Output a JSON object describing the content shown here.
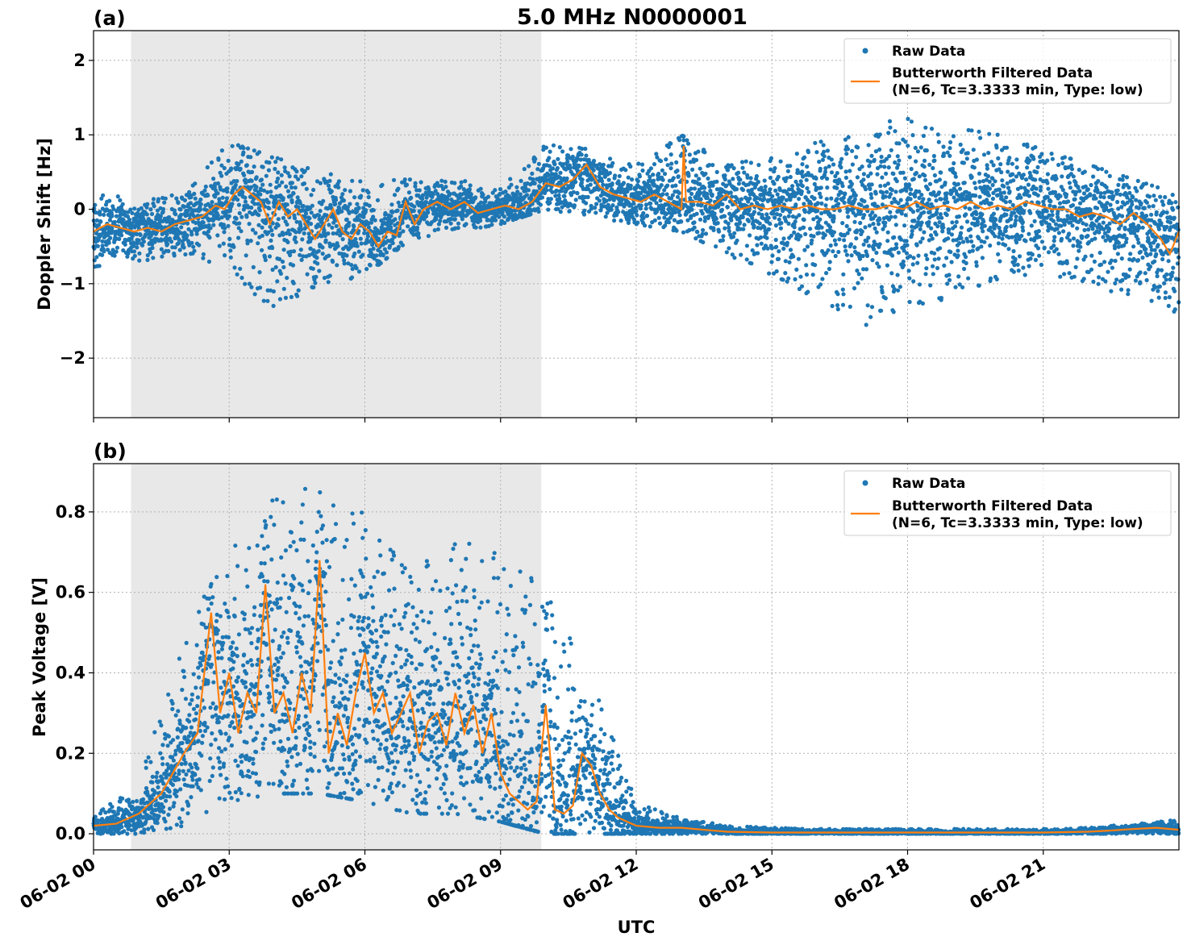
{
  "figure": {
    "title": "5.0 MHz N0000001",
    "xlabel": "UTC",
    "panel_labels": [
      "(a)",
      "(b)"
    ],
    "colors": {
      "raw": "#1f77b4",
      "filtered": "#ff7f0e",
      "shade": "#e8e8e8",
      "grid": "#b0b0b0"
    },
    "legend": {
      "raw_label": "Raw Data",
      "filtered_label_1": "Butterworth Filtered Data",
      "filtered_label_2": "(N=6, Tc=3.3333 min, Type: low)"
    }
  },
  "chart_data": [
    {
      "type": "scatter",
      "panel": "(a)",
      "title": "5.0 MHz N0000001",
      "xlabel": "",
      "ylabel": "Doppler Shift [Hz]",
      "xlim": [
        "06-02 00:00",
        "06-03 00:00"
      ],
      "ylim": [
        -2.8,
        2.4
      ],
      "yticks": [
        -2,
        -1,
        0,
        1,
        2
      ],
      "ytick_labels": [
        "−2",
        "−1",
        "0",
        "1",
        "2"
      ],
      "xticks_hours": [
        0,
        3,
        6,
        9,
        12,
        15,
        18,
        21
      ],
      "grid": true,
      "legend_position": "top-right",
      "shaded_interval_hours": [
        0.83,
        9.9
      ],
      "series": [
        {
          "name": "Butterworth Filtered Data\n(N=6, Tc=3.3333 min, Type: low)",
          "x_hours": [
            0,
            0.3,
            0.6,
            0.9,
            1.2,
            1.5,
            1.8,
            2.1,
            2.4,
            2.7,
            2.9,
            3.1,
            3.3,
            3.5,
            3.7,
            3.9,
            4.1,
            4.3,
            4.5,
            4.7,
            4.9,
            5.1,
            5.3,
            5.5,
            5.7,
            5.9,
            6.1,
            6.3,
            6.5,
            6.7,
            6.9,
            7.1,
            7.3,
            7.6,
            7.9,
            8.2,
            8.5,
            8.8,
            9.1,
            9.4,
            9.7,
            10.0,
            10.3,
            10.6,
            10.9,
            11.2,
            11.5,
            11.8,
            12.1,
            12.4,
            12.7,
            13.0,
            13.05,
            13.1,
            13.4,
            13.7,
            14.0,
            14.3,
            14.6,
            14.9,
            15.2,
            15.5,
            15.8,
            16.1,
            16.4,
            16.7,
            17.0,
            17.3,
            17.6,
            17.9,
            18.2,
            18.5,
            18.8,
            19.1,
            19.4,
            19.7,
            20.0,
            20.3,
            20.6,
            20.9,
            21.2,
            21.5,
            21.8,
            22.1,
            22.4,
            22.7,
            23.0,
            23.3,
            23.6,
            23.8,
            24.0
          ],
          "y": [
            -0.3,
            -0.2,
            -0.25,
            -0.3,
            -0.25,
            -0.3,
            -0.2,
            -0.15,
            -0.1,
            0.05,
            0.0,
            0.2,
            0.3,
            0.2,
            0.1,
            -0.2,
            0.1,
            -0.1,
            0.0,
            -0.2,
            -0.4,
            -0.2,
            0.0,
            -0.3,
            -0.4,
            -0.2,
            -0.3,
            -0.5,
            -0.3,
            -0.35,
            0.1,
            -0.2,
            0.0,
            0.1,
            0.0,
            0.1,
            -0.05,
            0.0,
            0.05,
            0.0,
            0.1,
            0.35,
            0.3,
            0.4,
            0.6,
            0.3,
            0.2,
            0.15,
            0.1,
            0.2,
            0.1,
            0.0,
            0.85,
            0.1,
            0.1,
            0.05,
            0.2,
            0.0,
            0.05,
            0.0,
            0.05,
            0.0,
            0.05,
            0.0,
            0.0,
            0.05,
            0.0,
            0.0,
            0.05,
            0.0,
            0.1,
            0.0,
            0.05,
            0.0,
            0.1,
            0.0,
            0.05,
            0.0,
            0.1,
            0.05,
            0.0,
            0.0,
            -0.1,
            -0.05,
            -0.1,
            -0.2,
            -0.05,
            -0.2,
            -0.4,
            -0.6,
            -0.3
          ]
        },
        {
          "name": "Raw Data",
          "description_envelope_x_hours": [
            0,
            1,
            2,
            3,
            4,
            5,
            6,
            7,
            8,
            9,
            10,
            11,
            12,
            13,
            14,
            15,
            16,
            17,
            18,
            19,
            20,
            21,
            22,
            23,
            24
          ],
          "upper": [
            0.2,
            0.15,
            0.2,
            0.9,
            0.7,
            0.5,
            0.4,
            0.4,
            0.4,
            0.3,
            0.9,
            0.8,
            0.6,
            1.0,
            0.6,
            0.7,
            0.9,
            1.0,
            1.3,
            1.1,
            1.0,
            0.8,
            0.6,
            0.4,
            0.2
          ],
          "lower": [
            -0.9,
            -0.7,
            -0.6,
            -0.8,
            -1.4,
            -1.0,
            -0.9,
            -0.4,
            -0.3,
            -0.2,
            0.0,
            -0.1,
            -0.2,
            -0.3,
            -0.6,
            -0.9,
            -1.2,
            -1.6,
            -1.3,
            -1.2,
            -1.0,
            -0.9,
            -1.0,
            -1.2,
            -1.4
          ]
        }
      ]
    },
    {
      "type": "scatter",
      "panel": "(b)",
      "title": "",
      "xlabel": "UTC",
      "ylabel": "Peak Voltage [V]",
      "xlim": [
        "06-02 00:00",
        "06-03 00:00"
      ],
      "ylim": [
        -0.04,
        0.92
      ],
      "yticks": [
        0.0,
        0.2,
        0.4,
        0.6,
        0.8
      ],
      "ytick_labels": [
        "0.0",
        "0.2",
        "0.4",
        "0.6",
        "0.8"
      ],
      "xtick_labels": [
        "06-02 00",
        "06-02 03",
        "06-02 06",
        "06-02 09",
        "06-02 12",
        "06-02 15",
        "06-02 18",
        "06-02 21"
      ],
      "xticks_hours": [
        0,
        3,
        6,
        9,
        12,
        15,
        18,
        21
      ],
      "grid": true,
      "legend_position": "top-right",
      "shaded_interval_hours": [
        0.83,
        9.9
      ],
      "series": [
        {
          "name": "Butterworth Filtered Data\n(N=6, Tc=3.3333 min, Type: low)",
          "x_hours": [
            0,
            0.5,
            1.0,
            1.5,
            2.0,
            2.3,
            2.6,
            2.8,
            3.0,
            3.2,
            3.4,
            3.6,
            3.8,
            4.0,
            4.2,
            4.4,
            4.6,
            4.8,
            5.0,
            5.2,
            5.4,
            5.6,
            5.8,
            6.0,
            6.2,
            6.4,
            6.6,
            6.8,
            7.0,
            7.2,
            7.4,
            7.6,
            7.8,
            8.0,
            8.2,
            8.4,
            8.6,
            8.8,
            9.0,
            9.2,
            9.4,
            9.6,
            9.8,
            10.0,
            10.2,
            10.4,
            10.6,
            10.8,
            11.0,
            11.2,
            11.4,
            11.6,
            11.8,
            12.0,
            12.5,
            13.0,
            13.5,
            14.0,
            15.0,
            16.0,
            17.0,
            18.0,
            19.0,
            20.0,
            21.0,
            22.0,
            22.5,
            23.0,
            23.5,
            24.0
          ],
          "y": [
            0.02,
            0.025,
            0.05,
            0.1,
            0.2,
            0.25,
            0.55,
            0.3,
            0.4,
            0.25,
            0.35,
            0.3,
            0.62,
            0.3,
            0.35,
            0.25,
            0.4,
            0.3,
            0.68,
            0.2,
            0.3,
            0.22,
            0.35,
            0.45,
            0.3,
            0.35,
            0.25,
            0.3,
            0.35,
            0.2,
            0.28,
            0.3,
            0.22,
            0.35,
            0.25,
            0.32,
            0.2,
            0.3,
            0.15,
            0.1,
            0.08,
            0.06,
            0.08,
            0.32,
            0.06,
            0.05,
            0.07,
            0.2,
            0.17,
            0.1,
            0.06,
            0.04,
            0.03,
            0.02,
            0.015,
            0.015,
            0.01,
            0.005,
            0.003,
            0.003,
            0.003,
            0.003,
            0.003,
            0.003,
            0.003,
            0.005,
            0.008,
            0.012,
            0.015,
            0.01
          ]
        },
        {
          "name": "Raw Data",
          "description_envelope_x_hours": [
            0,
            1,
            2,
            3,
            4,
            5,
            6,
            7,
            8,
            9,
            10,
            11,
            12,
            13,
            14,
            15,
            16,
            17,
            18,
            19,
            20,
            21,
            22,
            23,
            24
          ],
          "upper": [
            0.05,
            0.12,
            0.5,
            0.7,
            0.85,
            0.87,
            0.8,
            0.65,
            0.73,
            0.7,
            0.64,
            0.4,
            0.08,
            0.04,
            0.02,
            0.015,
            0.012,
            0.012,
            0.012,
            0.012,
            0.012,
            0.012,
            0.015,
            0.025,
            0.035
          ],
          "lower": [
            0.0,
            0.0,
            0.02,
            0.08,
            0.1,
            0.1,
            0.08,
            0.05,
            0.05,
            0.03,
            0.0,
            0.0,
            0.0,
            0.0,
            0.0,
            0.0,
            0.0,
            0.0,
            0.0,
            0.0,
            0.0,
            0.0,
            0.0,
            0.0,
            0.0
          ]
        }
      ]
    }
  ]
}
